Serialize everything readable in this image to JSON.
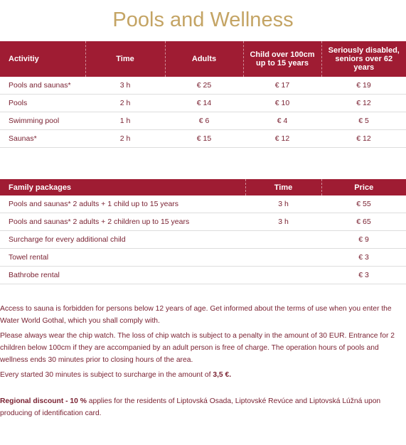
{
  "title": "Pools and Wellness",
  "table1": {
    "headers": [
      "Activitiy",
      "Time",
      "Adults",
      "Child over 100cm up to 15 years",
      "Seriously disabled, seniors over 62 years"
    ],
    "rows": [
      [
        "Pools and saunas*",
        "3 h",
        "€ 25",
        "€ 17",
        "€ 19"
      ],
      [
        "Pools",
        "2 h",
        "€ 14",
        "€ 10",
        "€ 12"
      ],
      [
        "Swimming pool",
        "1 h",
        "€ 6",
        "€ 4",
        "€ 5"
      ],
      [
        "Saunas*",
        "2 h",
        "€ 15",
        "€ 12",
        "€ 12"
      ]
    ]
  },
  "table2": {
    "headers": [
      "Family packages",
      "Time",
      "Price"
    ],
    "rows": [
      [
        "Pools and saunas* 2 adults + 1 child up to 15 years",
        "3 h",
        "€ 55"
      ],
      [
        "Pools and saunas* 2 adults + 2 children up to 15 years",
        "3 h",
        "€ 65"
      ],
      [
        "Surcharge for every additional child",
        null,
        "€ 9"
      ],
      [
        "Towel rental",
        null,
        "€ 3"
      ],
      [
        "Bathrobe rental",
        null,
        "€ 3"
      ]
    ]
  },
  "paragraphs": [
    [
      {
        "text": "Access to sauna is forbidden for persons below 12 years of age. Get informed about the terms of use when you enter the Water World Gothal, which you shall comply with."
      }
    ],
    [
      {
        "text": "Please always wear the chip watch. The loss of chip watch is subject to a penalty in the amount of 30 EUR. Entrance for 2 children below 100cm if they are accompanied by an adult person is free of charge. The operation hours of pools and wellness ends 30 minutes prior to closing hours of the area."
      }
    ],
    [
      {
        "text": "Every started 30 minutes is subject to surcharge in the amount of "
      },
      {
        "text": "3,5 €.",
        "bold": true
      }
    ],
    [
      {
        "text": "Regional discount - 10 %",
        "bold": true
      },
      {
        "text": " applies for the residents of Liptovská Osada, Liptovské Revúce and Liptovská Lúžná upon producing of identification card."
      }
    ]
  ]
}
